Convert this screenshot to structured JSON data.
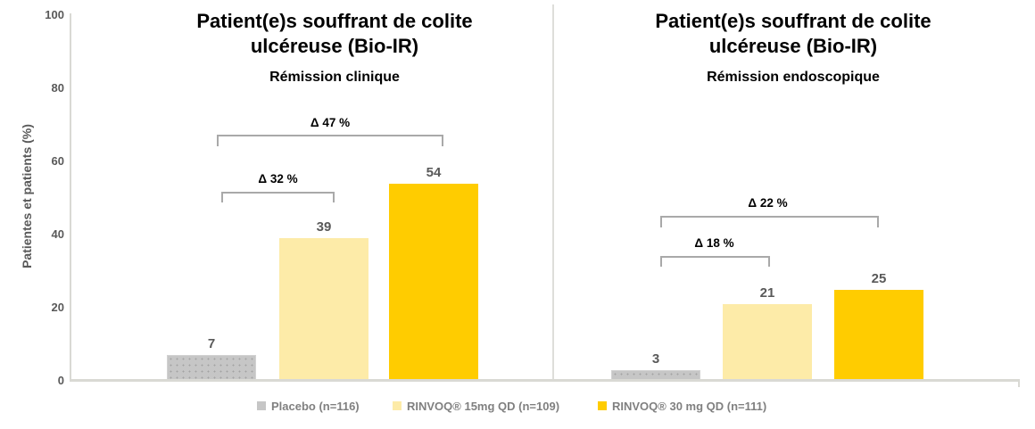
{
  "y_axis": {
    "label": "Patientes et patients (%)",
    "ticks": [
      "100",
      "80",
      "60",
      "40",
      "20",
      "0"
    ]
  },
  "legend": {
    "items": [
      {
        "label": "Placebo (n=116)",
        "color": "#c6c6c6"
      },
      {
        "label": "RINVOQ® 15mg QD (n=109)",
        "color": "#fdeba8"
      },
      {
        "label": "RINVOQ® 30 mg QD (n=111)",
        "color": "#ffcc00"
      }
    ]
  },
  "colors": {
    "placebo_gray": "#c6c6c6",
    "rinvoq_15mg_cream": "#fdeba8",
    "rinvoq_30mg_gold": "#ffcc00",
    "axis_gray": "#d9d9d4",
    "bracket_gray": "#a9a9a9",
    "value_label_gray": "#595959",
    "legend_text_gray": "#808080",
    "title_black": "#000000"
  },
  "chart_data": [
    {
      "type": "bar",
      "title": "Patient(e)s souffrant de colite ulcéreuse (Bio-IR)",
      "subtitle": "Rémission clinique",
      "categories": [
        "Placebo (n=116)",
        "RINVOQ® 15mg QD (n=109)",
        "RINVOQ® 30 mg QD (n=111)"
      ],
      "values": [
        7,
        39,
        54
      ],
      "ylabel": "Patientes et patients (%)",
      "ylim": [
        0,
        100
      ],
      "grid": false,
      "legend_position": "bottom",
      "annotations": [
        {
          "label": "Δ 32 %",
          "from": "Placebo (n=116)",
          "to": "RINVOQ® 15mg QD (n=109)"
        },
        {
          "label": "Δ 47 %",
          "from": "Placebo (n=116)",
          "to": "RINVOQ® 30 mg QD (n=111)"
        }
      ]
    },
    {
      "type": "bar",
      "title": "Patient(e)s souffrant de colite ulcéreuse (Bio-IR)",
      "subtitle": "Rémission endoscopique",
      "categories": [
        "Placebo (n=116)",
        "RINVOQ® 15mg QD (n=109)",
        "RINVOQ® 30 mg QD (n=111)"
      ],
      "values": [
        3,
        21,
        25
      ],
      "ylabel": "Patientes et patients (%)",
      "ylim": [
        0,
        100
      ],
      "grid": false,
      "legend_position": "bottom",
      "annotations": [
        {
          "label": "Δ 18 %",
          "from": "Placebo (n=116)",
          "to": "RINVOQ® 15mg QD (n=109)"
        },
        {
          "label": "Δ 22 %",
          "from": "Placebo (n=116)",
          "to": "RINVOQ® 30 mg QD (n=111)"
        }
      ]
    }
  ]
}
